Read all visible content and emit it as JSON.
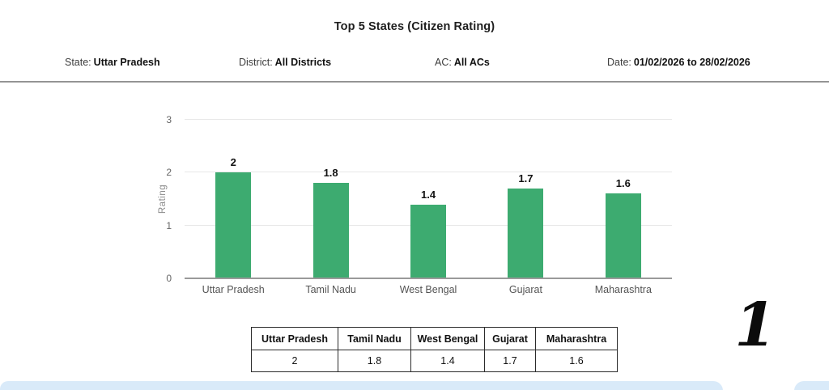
{
  "header": {
    "title": "Top 5 States (Citizen Rating)"
  },
  "filters": {
    "items": [
      {
        "label": "State:",
        "value": "Uttar Pradesh"
      },
      {
        "label": "District:",
        "value": "All Districts"
      },
      {
        "label": "AC:",
        "value": "All ACs"
      },
      {
        "label": "Date:",
        "value": "01/02/2026 to 28/02/2026"
      }
    ]
  },
  "chart_data": {
    "type": "bar",
    "title": "Top 5 States (Citizen Rating)",
    "categories": [
      "Uttar Pradesh",
      "Tamil Nadu",
      "West Bengal",
      "Gujarat",
      "Maharashtra"
    ],
    "values": [
      2,
      1.8,
      1.4,
      1.7,
      1.6
    ],
    "data_labels": [
      "2",
      "1.8",
      "1.4",
      "1.7",
      "1.6"
    ],
    "xlabel": "",
    "ylabel": "Rating",
    "ylim": [
      0,
      3
    ],
    "yticks": [
      0,
      1,
      2,
      3
    ],
    "grid": true,
    "legend": false,
    "bar_color": "#3dab70"
  },
  "table": {
    "headers": [
      "Uttar Pradesh",
      "Tamil Nadu",
      "West Bengal",
      "Gujarat",
      "Maharashtra"
    ],
    "values": [
      "2",
      "1.8",
      "1.4",
      "1.7",
      "1.6"
    ]
  },
  "page": {
    "number_label": "1"
  },
  "colors": {
    "bar": "#3dab70",
    "band": "#d9eaf9",
    "divider": "#949494"
  }
}
